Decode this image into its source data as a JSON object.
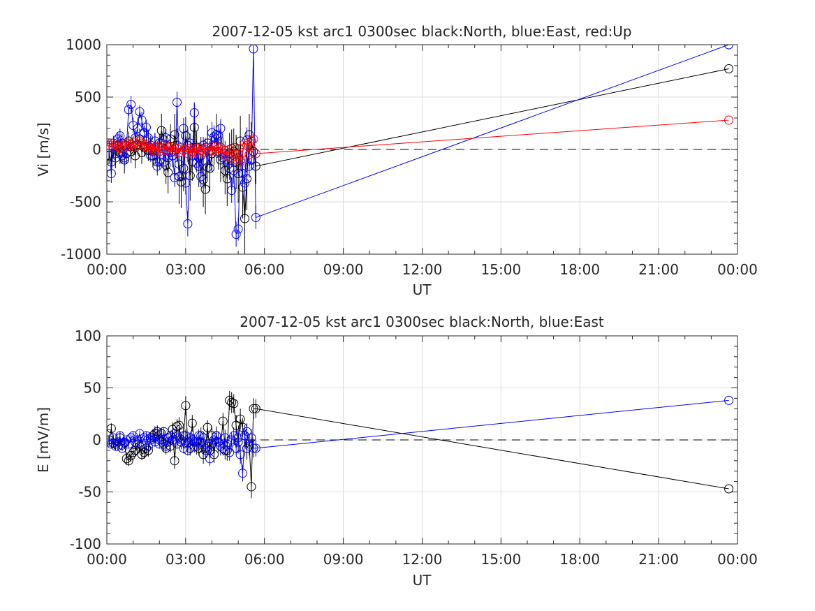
{
  "chart_data": [
    {
      "type": "line",
      "title": "2007-12-05 kst arc1 0300sec black:North, blue:East, red:Up",
      "xlabel": "UT",
      "ylabel": "Vi [m/s]",
      "xlim": [
        0,
        24
      ],
      "ylim": [
        -1000,
        1000
      ],
      "xtick_labels": [
        "00:00",
        "03:00",
        "06:00",
        "09:00",
        "12:00",
        "15:00",
        "18:00",
        "21:00",
        "00:00"
      ],
      "ytick_labels": [
        "-1000",
        "-500",
        "0",
        "500",
        "1000"
      ],
      "yticks": [
        -1000,
        -500,
        0,
        500,
        1000
      ],
      "grid": true,
      "zero_line": true,
      "series": [
        {
          "color": "#000000",
          "x": [
            0.08,
            0.17,
            0.25,
            0.33,
            0.42,
            0.5,
            0.58,
            0.67,
            0.75,
            0.83,
            0.92,
            1.0,
            1.08,
            1.17,
            1.25,
            1.33,
            1.42,
            1.5,
            1.58,
            1.67,
            1.75,
            1.83,
            1.92,
            2.0,
            2.08,
            2.17,
            2.25,
            2.33,
            2.42,
            2.5,
            2.58,
            2.67,
            2.75,
            2.83,
            2.92,
            3.0,
            3.08,
            3.17,
            3.25,
            3.33,
            3.42,
            3.5,
            3.58,
            3.67,
            3.75,
            3.83,
            3.92,
            4.0,
            4.08,
            4.17,
            4.25,
            4.33,
            4.42,
            4.5,
            4.58,
            4.67,
            4.75,
            4.83,
            4.92,
            5.0,
            5.08,
            5.17,
            5.25,
            5.33,
            5.42,
            5.5,
            5.58,
            5.67,
            23.67
          ],
          "y": [
            -60,
            -120,
            20,
            -80,
            40,
            -30,
            60,
            -100,
            -40,
            80,
            -20,
            30,
            -60,
            50,
            100,
            -30,
            20,
            80,
            -10,
            40,
            -60,
            20,
            -120,
            60,
            180,
            90,
            -150,
            -220,
            100,
            -60,
            140,
            40,
            -260,
            -310,
            -180,
            130,
            40,
            -250,
            -120,
            210,
            20,
            -160,
            -60,
            -290,
            -380,
            60,
            -180,
            -40,
            40,
            140,
            -20,
            -100,
            -80,
            -200,
            -280,
            -40,
            10,
            -20,
            -120,
            -230,
            80,
            -360,
            -660,
            -280,
            140,
            80,
            -20,
            -160,
            770
          ],
          "err": [
            80,
            120,
            90,
            100,
            80,
            110,
            90,
            130,
            100,
            90,
            110,
            100,
            120,
            90,
            100,
            110,
            90,
            120,
            100,
            90,
            110,
            130,
            100,
            90,
            160,
            120,
            180,
            200,
            140,
            110,
            200,
            160,
            260,
            250,
            220,
            180,
            160,
            240,
            180,
            230,
            150,
            200,
            180,
            260,
            240,
            170,
            220,
            180,
            190,
            200,
            170,
            210,
            190,
            230,
            260,
            200,
            180,
            220,
            260,
            280,
            240,
            300,
            350,
            300,
            200,
            180,
            160,
            170,
            0
          ]
        },
        {
          "color": "#0000ff",
          "x": [
            0.08,
            0.17,
            0.25,
            0.33,
            0.42,
            0.5,
            0.58,
            0.67,
            0.75,
            0.83,
            0.92,
            1.0,
            1.08,
            1.17,
            1.25,
            1.33,
            1.42,
            1.5,
            1.58,
            1.67,
            1.75,
            1.83,
            1.92,
            2.0,
            2.08,
            2.17,
            2.25,
            2.33,
            2.42,
            2.5,
            2.58,
            2.67,
            2.75,
            2.83,
            2.92,
            3.0,
            3.08,
            3.17,
            3.25,
            3.33,
            3.42,
            3.5,
            3.58,
            3.67,
            3.75,
            3.83,
            3.92,
            4.0,
            4.08,
            4.17,
            4.25,
            4.33,
            4.42,
            4.5,
            4.58,
            4.67,
            4.75,
            4.83,
            4.92,
            5.0,
            5.08,
            5.17,
            5.25,
            5.33,
            5.42,
            5.5,
            5.58,
            5.67,
            23.67
          ],
          "y": [
            20,
            -230,
            60,
            -40,
            100,
            130,
            -60,
            -80,
            40,
            380,
            430,
            230,
            110,
            200,
            360,
            280,
            160,
            210,
            110,
            -60,
            -20,
            80,
            -160,
            -120,
            60,
            -120,
            110,
            -80,
            -30,
            -60,
            -270,
            450,
            -140,
            -250,
            200,
            -320,
            -710,
            60,
            -60,
            350,
            -130,
            -80,
            -260,
            40,
            20,
            -170,
            -10,
            160,
            120,
            40,
            130,
            200,
            -80,
            -40,
            -100,
            -180,
            -390,
            -200,
            -810,
            -760,
            -100,
            -230,
            -320,
            90,
            -160,
            -100,
            960,
            -650,
            1000
          ],
          "err": [
            60,
            90,
            70,
            80,
            60,
            70,
            80,
            90,
            70,
            60,
            80,
            70,
            80,
            70,
            60,
            80,
            70,
            70,
            80,
            60,
            70,
            80,
            90,
            70,
            80,
            90,
            80,
            90,
            70,
            80,
            90,
            100,
            80,
            90,
            100,
            110,
            120,
            90,
            80,
            100,
            90,
            90,
            100,
            80,
            90,
            100,
            90,
            100,
            110,
            120,
            100,
            90,
            110,
            120,
            100,
            110,
            120,
            130,
            120,
            110,
            100,
            120,
            130,
            120,
            110,
            100,
            120,
            110,
            0
          ]
        },
        {
          "color": "#ff0000",
          "x": [
            0.08,
            0.17,
            0.25,
            0.33,
            0.42,
            0.5,
            0.58,
            0.67,
            0.75,
            0.83,
            0.92,
            1.0,
            1.08,
            1.17,
            1.25,
            1.33,
            1.42,
            1.5,
            1.58,
            1.67,
            1.75,
            1.83,
            1.92,
            2.0,
            2.08,
            2.17,
            2.25,
            2.33,
            2.42,
            2.5,
            2.58,
            2.67,
            2.75,
            2.83,
            2.92,
            3.0,
            3.08,
            3.17,
            3.25,
            3.33,
            3.42,
            3.5,
            3.58,
            3.67,
            3.75,
            3.83,
            3.92,
            4.0,
            4.08,
            4.17,
            4.25,
            4.33,
            4.42,
            4.5,
            4.58,
            4.67,
            4.75,
            4.83,
            4.92,
            5.0,
            5.08,
            5.17,
            5.25,
            5.33,
            5.42,
            5.5,
            5.58,
            5.67,
            23.67
          ],
          "y": [
            40,
            60,
            20,
            50,
            30,
            10,
            40,
            20,
            60,
            30,
            50,
            70,
            20,
            40,
            80,
            60,
            30,
            50,
            20,
            10,
            -10,
            20,
            30,
            -20,
            10,
            40,
            -10,
            20,
            30,
            0,
            -20,
            10,
            -30,
            20,
            -10,
            0,
            -40,
            10,
            -20,
            -30,
            10,
            20,
            -10,
            -30,
            0,
            20,
            -20,
            -10,
            30,
            -20,
            10,
            20,
            -40,
            -10,
            -60,
            0,
            -80,
            20,
            -100,
            -40,
            -120,
            -30,
            60,
            40,
            -50,
            80,
            100,
            -40,
            280
          ],
          "err": [
            30,
            30,
            30,
            30,
            30,
            30,
            30,
            30,
            30,
            30,
            30,
            30,
            30,
            30,
            30,
            30,
            30,
            30,
            30,
            30,
            30,
            30,
            30,
            30,
            30,
            30,
            30,
            30,
            30,
            30,
            30,
            30,
            30,
            30,
            30,
            30,
            30,
            30,
            30,
            30,
            30,
            30,
            30,
            30,
            30,
            30,
            30,
            30,
            30,
            30,
            30,
            30,
            30,
            30,
            30,
            30,
            30,
            30,
            30,
            30,
            30,
            30,
            30,
            30,
            30,
            30,
            30,
            30,
            0
          ]
        }
      ]
    },
    {
      "type": "line",
      "title": "2007-12-05 kst arc1 0300sec black:North, blue:East",
      "xlabel": "UT",
      "ylabel": "E [mV/m]",
      "xlim": [
        0,
        24
      ],
      "ylim": [
        -100,
        100
      ],
      "xtick_labels": [
        "00:00",
        "03:00",
        "06:00",
        "09:00",
        "12:00",
        "15:00",
        "18:00",
        "21:00",
        "00:00"
      ],
      "ytick_labels": [
        "-100",
        "-50",
        "0",
        "50",
        "100"
      ],
      "yticks": [
        -100,
        -50,
        0,
        50,
        100
      ],
      "grid": true,
      "zero_line": true,
      "series": [
        {
          "color": "#000000",
          "x": [
            0.08,
            0.17,
            0.25,
            0.33,
            0.42,
            0.5,
            0.58,
            0.67,
            0.75,
            0.83,
            0.92,
            1.0,
            1.08,
            1.17,
            1.25,
            1.33,
            1.42,
            1.5,
            1.58,
            1.67,
            1.75,
            1.83,
            1.92,
            2.0,
            2.08,
            2.17,
            2.25,
            2.33,
            2.42,
            2.5,
            2.58,
            2.67,
            2.75,
            2.83,
            2.92,
            3.0,
            3.08,
            3.17,
            3.25,
            3.33,
            3.42,
            3.5,
            3.58,
            3.67,
            3.75,
            3.83,
            3.92,
            4.0,
            4.08,
            4.17,
            4.25,
            4.33,
            4.42,
            4.5,
            4.58,
            4.67,
            4.75,
            4.83,
            4.92,
            5.0,
            5.08,
            5.17,
            5.25,
            5.33,
            5.42,
            5.5,
            5.58,
            5.67,
            23.67
          ],
          "y": [
            0,
            11,
            -3,
            -4,
            -6,
            2,
            -5,
            -3,
            -18,
            -20,
            -15,
            -12,
            -10,
            -4,
            -6,
            -14,
            -12,
            -8,
            -10,
            2,
            4,
            6,
            8,
            0,
            6,
            -4,
            -8,
            2,
            -6,
            10,
            -20,
            13,
            14,
            -2,
            4,
            33,
            -3,
            -8,
            16,
            -2,
            -6,
            -8,
            4,
            -14,
            -8,
            12,
            -10,
            4,
            -14,
            4,
            -2,
            -6,
            18,
            -10,
            -10,
            38,
            36,
            35,
            14,
            -2,
            20,
            12,
            4,
            -8,
            -4,
            -45,
            30,
            30,
            -47
          ],
          "err": [
            4,
            5,
            4,
            5,
            4,
            5,
            4,
            5,
            6,
            5,
            6,
            5,
            6,
            5,
            6,
            5,
            6,
            5,
            6,
            5,
            6,
            7,
            6,
            5,
            6,
            7,
            6,
            7,
            6,
            7,
            8,
            7,
            8,
            7,
            8,
            9,
            8,
            7,
            8,
            7,
            8,
            7,
            8,
            9,
            8,
            7,
            8,
            9,
            8,
            9,
            10,
            9,
            8,
            9,
            10,
            9,
            10,
            9,
            10,
            11,
            10,
            9,
            10,
            11,
            10,
            11,
            10,
            9,
            0
          ]
        },
        {
          "color": "#0000ff",
          "x": [
            0.08,
            0.17,
            0.25,
            0.33,
            0.42,
            0.5,
            0.58,
            0.67,
            0.75,
            0.83,
            0.92,
            1.0,
            1.08,
            1.17,
            1.25,
            1.33,
            1.42,
            1.5,
            1.58,
            1.67,
            1.75,
            1.83,
            1.92,
            2.0,
            2.08,
            2.17,
            2.25,
            2.33,
            2.42,
            2.5,
            2.58,
            2.67,
            2.75,
            2.83,
            2.92,
            3.0,
            3.08,
            3.17,
            3.25,
            3.33,
            3.42,
            3.5,
            3.58,
            3.67,
            3.75,
            3.83,
            3.92,
            4.0,
            4.08,
            4.17,
            4.25,
            4.33,
            4.42,
            4.5,
            4.58,
            4.67,
            4.75,
            4.83,
            4.92,
            5.0,
            5.08,
            5.17,
            5.25,
            5.33,
            5.42,
            5.5,
            5.58,
            5.67,
            23.67
          ],
          "y": [
            -2,
            -4,
            2,
            -6,
            -2,
            4,
            -8,
            -2,
            0,
            -4,
            2,
            4,
            -2,
            0,
            6,
            -4,
            2,
            4,
            -6,
            0,
            2,
            -2,
            6,
            -4,
            0,
            8,
            -6,
            -2,
            4,
            0,
            6,
            -4,
            2,
            0,
            -8,
            4,
            -10,
            2,
            0,
            -6,
            -2,
            4,
            -2,
            2,
            -10,
            -6,
            -18,
            -4,
            0,
            4,
            -2,
            -6,
            -8,
            2,
            -4,
            -12,
            0,
            4,
            -8,
            2,
            -14,
            -32,
            4,
            8,
            -6,
            2,
            -8,
            -8,
            38
          ],
          "err": [
            3,
            4,
            3,
            4,
            3,
            4,
            3,
            4,
            3,
            4,
            3,
            4,
            3,
            4,
            3,
            4,
            3,
            4,
            3,
            4,
            3,
            4,
            5,
            4,
            5,
            4,
            5,
            4,
            5,
            4,
            5,
            4,
            5,
            6,
            5,
            6,
            5,
            6,
            5,
            6,
            5,
            6,
            5,
            6,
            7,
            6,
            7,
            6,
            7,
            6,
            7,
            6,
            7,
            8,
            7,
            8,
            7,
            8,
            7,
            8,
            9,
            8,
            9,
            8,
            9,
            8,
            9,
            8,
            0
          ]
        }
      ]
    }
  ]
}
